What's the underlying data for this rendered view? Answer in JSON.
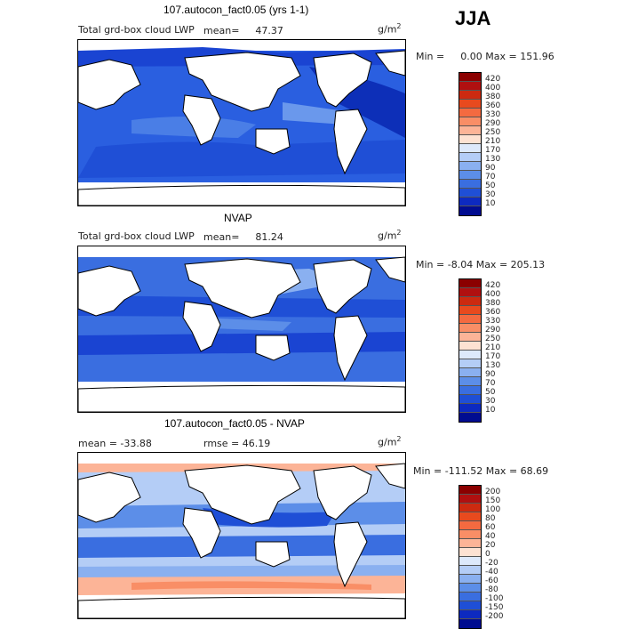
{
  "season": "JJA",
  "panels": [
    {
      "title": "107.autocon_fact0.05 (yrs 1-1)",
      "left_label": "Total grd-box cloud LWP",
      "mean_label": "mean=",
      "mean_value": "47.37",
      "unit_base": "g/m",
      "unit_exp": "2",
      "min_label": "Min =",
      "min_value": "0.00",
      "max_label": "Max =",
      "max_value": "151.96"
    },
    {
      "title": "NVAP",
      "left_label": "Total grd-box cloud LWP",
      "mean_label": "mean=",
      "mean_value": "81.24",
      "unit_base": "g/m",
      "unit_exp": "2",
      "min_label": "Min =",
      "min_value": "-8.04",
      "max_label": "Max =",
      "max_value": "205.13"
    },
    {
      "title": "107.autocon_fact0.05 - NVAP",
      "left_label": "mean = -33.88",
      "rmse_label": "rmse =  46.19",
      "unit_base": "g/m",
      "unit_exp": "2",
      "min_label": "Min =",
      "min_value": "-111.52",
      "max_label": "Max =",
      "max_value": "68.69"
    }
  ],
  "colorbars": {
    "lwp": {
      "labels": [
        "420",
        "400",
        "380",
        "360",
        "330",
        "290",
        "250",
        "210",
        "170",
        "130",
        "90",
        "70",
        "50",
        "30",
        "10"
      ],
      "colors": [
        "#8b0000",
        "#b01010",
        "#cc2a10",
        "#e84a1e",
        "#f46a40",
        "#f98e66",
        "#fcb497",
        "#fde2d2",
        "#dde9fb",
        "#b4cdf6",
        "#8ab0f0",
        "#5c8ee8",
        "#3a6ee0",
        "#1f4fd6",
        "#0d2ac0",
        "#000c90"
      ]
    },
    "diff": {
      "labels": [
        "200",
        "150",
        "100",
        "80",
        "60",
        "40",
        "20",
        "0",
        "-20",
        "-40",
        "-60",
        "-80",
        "-100",
        "-150",
        "-200"
      ],
      "colors": [
        "#8b0000",
        "#b01010",
        "#cc2a10",
        "#e84a1e",
        "#f46a40",
        "#f98e66",
        "#fcb497",
        "#fde2d2",
        "#dde9fb",
        "#b4cdf6",
        "#8ab0f0",
        "#5c8ee8",
        "#3a6ee0",
        "#1f4fd6",
        "#0d2ac0",
        "#000c90"
      ]
    }
  }
}
